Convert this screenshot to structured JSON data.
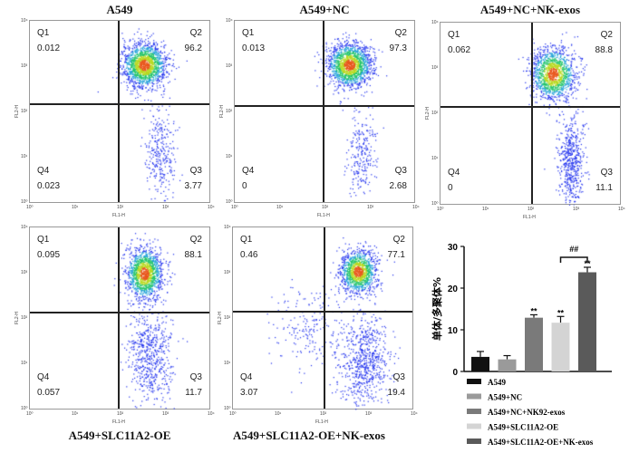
{
  "plots": [
    {
      "title": "A549",
      "q1": "0.012",
      "q2": "96.2",
      "q3": "3.77",
      "q4": "0.023"
    },
    {
      "title": "A549+NC",
      "q1": "0.013",
      "q2": "97.3",
      "q3": "2.68",
      "q4": "0"
    },
    {
      "title": "A549+NC+NK-exos",
      "q1": "0.062",
      "q2": "88.8",
      "q3": "11.1",
      "q4": "0"
    },
    {
      "title": "A549+SLC11A2-OE",
      "q1": "0.095",
      "q2": "88.1",
      "q3": "11.7",
      "q4": "0.057"
    },
    {
      "title": "A549+SLC11A2-OE+NK-exos",
      "q1": "0.46",
      "q2": "77.1",
      "q3": "19.4",
      "q4": "3.07"
    }
  ],
  "quadrant_names": {
    "q1": "Q1",
    "q2": "Q2",
    "q3": "Q3",
    "q4": "Q4"
  },
  "axis": {
    "x": "FL1-H",
    "y": "FL2-H",
    "ticks": [
      "10⁰",
      "10¹",
      "10²",
      "10³",
      "10⁴"
    ]
  },
  "chart_data": {
    "type": "bar",
    "ylabel": "单体/多聚体%",
    "ylim": [
      0,
      30
    ],
    "yticks": [
      "0",
      "10",
      "20",
      "30"
    ],
    "categories": [
      "A549",
      "A549+NC",
      "A549+NC+NK92-exos",
      "A549+SLC11A2-OE",
      "A549+SLC11A2-OE+NK-exos"
    ],
    "values": [
      3.5,
      2.9,
      12.9,
      11.7,
      23.8
    ],
    "errors": [
      1.3,
      0.9,
      0.7,
      1.5,
      1.2
    ],
    "colors": [
      "#111111",
      "#9a9a9a",
      "#7a7a7a",
      "#d4d4d4",
      "#5a5a5a"
    ],
    "annotations": [
      "",
      "",
      "**",
      "**",
      "**"
    ],
    "comparison": {
      "label": "##",
      "between": [
        3,
        4
      ]
    },
    "legend": "bottom"
  }
}
